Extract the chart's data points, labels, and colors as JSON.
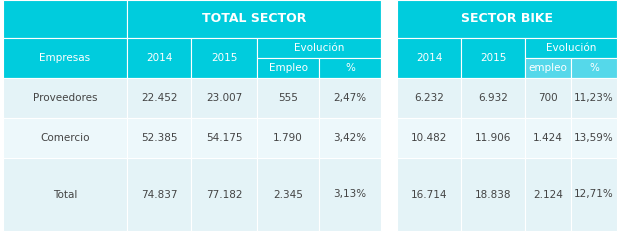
{
  "title_left": "TOTAL SECTOR",
  "title_right": "SECTOR BIKE",
  "cyan": "#00CCDD",
  "cyan_header": "#00CCDD",
  "evolucion_bg": "#33D4E8",
  "row_bg_1": "#E8F5F8",
  "row_bg_2": "#EFF9FB",
  "white": "#FFFFFF",
  "text_white": "#FFFFFF",
  "text_dark": "#444444",
  "evolucion_label": "Evolución",
  "empresas_col": [
    "Empresas",
    "Proveedores",
    "Comercio",
    "Total"
  ],
  "total_sector": {
    "col2014": [
      "2014",
      "22.452",
      "52.385",
      "74.837"
    ],
    "col2015": [
      "2015",
      "23.007",
      "54.175",
      "77.182"
    ],
    "empleo": [
      "Empleo",
      "555",
      "1.790",
      "2.345"
    ],
    "pct": [
      "%",
      "2,47%",
      "3,42%",
      "3,13%"
    ]
  },
  "sector_bike": {
    "col2014": [
      "2014",
      "6.232",
      "10.482",
      "16.714"
    ],
    "col2015": [
      "2015",
      "6.932",
      "11.906",
      "18.838"
    ],
    "empleo": [
      "empleo",
      "700",
      "1.424",
      "2.124"
    ],
    "pct": [
      "%",
      "11,23%",
      "13,59%",
      "12,71%"
    ]
  },
  "fig_w": 6.2,
  "fig_h": 2.34,
  "dpi": 100
}
